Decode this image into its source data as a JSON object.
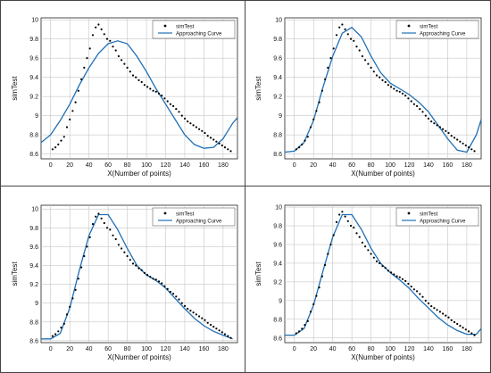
{
  "chart_data": [
    {
      "type": "scatter",
      "panel": "top-left",
      "xlabel": "X(Number of points)",
      "ylabel": "simTest",
      "xlim": [
        -10,
        195
      ],
      "ylim": [
        8.55,
        10.02
      ],
      "xticks": [
        0,
        20,
        40,
        60,
        80,
        100,
        120,
        140,
        160,
        180
      ],
      "yticks": [
        8.6,
        8.8,
        9,
        9.2,
        9.4,
        9.6,
        9.8,
        10
      ],
      "legend": {
        "placement": "top-right",
        "entries": [
          "simTest",
          "Approaching Curve"
        ]
      },
      "grid": true,
      "series": [
        {
          "name": "simTest",
          "kind": "points",
          "color": "#000000"
        },
        {
          "name": "Approaching Curve",
          "kind": "line",
          "color": "#1f6fb5",
          "x": [
            -10,
            0,
            10,
            20,
            30,
            40,
            50,
            60,
            70,
            80,
            90,
            100,
            110,
            120,
            130,
            140,
            150,
            160,
            170,
            180,
            190,
            195
          ],
          "y": [
            8.72,
            8.8,
            8.95,
            9.12,
            9.32,
            9.5,
            9.65,
            9.75,
            9.78,
            9.75,
            9.62,
            9.46,
            9.28,
            9.12,
            8.96,
            8.8,
            8.7,
            8.66,
            8.67,
            8.76,
            8.92,
            8.98
          ]
        }
      ]
    },
    {
      "type": "scatter",
      "panel": "top-right",
      "xlabel": "X(Number of points)",
      "ylabel": "simTest",
      "xlim": [
        -10,
        195
      ],
      "ylim": [
        8.55,
        10.02
      ],
      "xticks": [
        0,
        20,
        40,
        60,
        80,
        100,
        120,
        140,
        160,
        180
      ],
      "yticks": [
        8.6,
        8.8,
        9,
        9.2,
        9.4,
        9.6,
        9.8,
        10
      ],
      "legend": {
        "placement": "top-right",
        "entries": [
          "simTest",
          "Approaching Curve"
        ]
      },
      "grid": true,
      "series": [
        {
          "name": "simTest",
          "kind": "points",
          "color": "#000000"
        },
        {
          "name": "Approaching Curve",
          "kind": "line",
          "color": "#1f6fb5",
          "x": [
            -10,
            0,
            10,
            20,
            30,
            40,
            50,
            60,
            70,
            80,
            90,
            100,
            110,
            120,
            130,
            140,
            150,
            160,
            170,
            180,
            190,
            195
          ],
          "y": [
            8.62,
            8.63,
            8.72,
            8.95,
            9.3,
            9.62,
            9.86,
            9.92,
            9.82,
            9.62,
            9.45,
            9.34,
            9.28,
            9.22,
            9.14,
            9.04,
            8.9,
            8.76,
            8.64,
            8.62,
            8.8,
            8.96
          ]
        }
      ]
    },
    {
      "type": "scatter",
      "panel": "bottom-left",
      "xlabel": "X(Number of points)",
      "ylabel": "simTest",
      "xlim": [
        -10,
        195
      ],
      "ylim": [
        8.58,
        10.04
      ],
      "xticks": [
        0,
        20,
        40,
        60,
        80,
        100,
        120,
        140,
        160,
        180
      ],
      "yticks": [
        8.6,
        8.8,
        9,
        9.2,
        9.4,
        9.6,
        9.8,
        10
      ],
      "legend": {
        "placement": "top-right",
        "entries": [
          "simTest",
          "Approaching Curve"
        ]
      },
      "grid": true,
      "series": [
        {
          "name": "simTest",
          "kind": "points",
          "color": "#000000"
        },
        {
          "name": "Approaching Curve",
          "kind": "line",
          "color": "#1f6fb5",
          "x": [
            -10,
            0,
            10,
            20,
            30,
            40,
            50,
            60,
            70,
            80,
            90,
            100,
            110,
            120,
            130,
            140,
            150,
            160,
            170,
            180,
            190
          ],
          "y": [
            8.62,
            8.62,
            8.68,
            8.95,
            9.35,
            9.72,
            9.94,
            9.94,
            9.78,
            9.58,
            9.4,
            9.3,
            9.24,
            9.16,
            9.05,
            8.94,
            8.84,
            8.76,
            8.7,
            8.66,
            8.62
          ]
        }
      ]
    },
    {
      "type": "scatter",
      "panel": "bottom-right",
      "xlabel": "X(Number of points)",
      "ylabel": "simTest",
      "xlim": [
        -10,
        195
      ],
      "ylim": [
        8.55,
        10.02
      ],
      "xticks": [
        0,
        20,
        40,
        60,
        80,
        100,
        120,
        140,
        160,
        180
      ],
      "yticks": [
        8.6,
        8.8,
        9,
        9.2,
        9.4,
        9.6,
        9.8,
        10
      ],
      "legend": {
        "placement": "top-right",
        "entries": [
          "simTest",
          "Approaching Curve"
        ]
      },
      "grid": true,
      "series": [
        {
          "name": "simTest",
          "kind": "points",
          "color": "#000000"
        },
        {
          "name": "Approaching Curve",
          "kind": "line",
          "color": "#1f6fb5",
          "x": [
            -10,
            0,
            10,
            20,
            30,
            40,
            50,
            60,
            70,
            80,
            90,
            100,
            110,
            120,
            130,
            140,
            150,
            160,
            170,
            180,
            190,
            195
          ],
          "y": [
            8.63,
            8.63,
            8.7,
            8.95,
            9.32,
            9.68,
            9.92,
            9.92,
            9.76,
            9.56,
            9.4,
            9.3,
            9.22,
            9.13,
            9.02,
            8.92,
            8.82,
            8.74,
            8.68,
            8.64,
            8.64,
            8.7
          ]
        }
      ]
    }
  ],
  "sim_points": {
    "x": [
      2,
      5,
      8,
      11,
      14,
      17,
      20,
      23,
      26,
      29,
      32,
      35,
      38,
      41,
      44,
      47,
      50,
      53,
      56,
      59,
      62,
      65,
      68,
      71,
      74,
      77,
      80,
      83,
      86,
      89,
      92,
      95,
      98,
      101,
      104,
      107,
      110,
      113,
      116,
      119,
      122,
      125,
      128,
      131,
      134,
      137,
      140,
      143,
      146,
      149,
      152,
      155,
      158,
      161,
      164,
      167,
      170,
      173,
      176,
      179,
      182,
      185,
      188
    ],
    "y": [
      8.65,
      8.67,
      8.7,
      8.74,
      8.78,
      8.88,
      8.96,
      9.05,
      9.14,
      9.26,
      9.38,
      9.5,
      9.6,
      9.7,
      9.84,
      9.92,
      9.95,
      9.9,
      9.85,
      9.8,
      9.78,
      9.72,
      9.68,
      9.62,
      9.58,
      9.54,
      9.5,
      9.46,
      9.42,
      9.4,
      9.37,
      9.35,
      9.32,
      9.3,
      9.28,
      9.26,
      9.25,
      9.23,
      9.21,
      9.18,
      9.15,
      9.12,
      9.1,
      9.07,
      9.04,
      9.0,
      8.97,
      8.94,
      8.92,
      8.9,
      8.88,
      8.86,
      8.84,
      8.82,
      8.79,
      8.77,
      8.75,
      8.73,
      8.71,
      8.69,
      8.67,
      8.65,
      8.63
    ]
  }
}
